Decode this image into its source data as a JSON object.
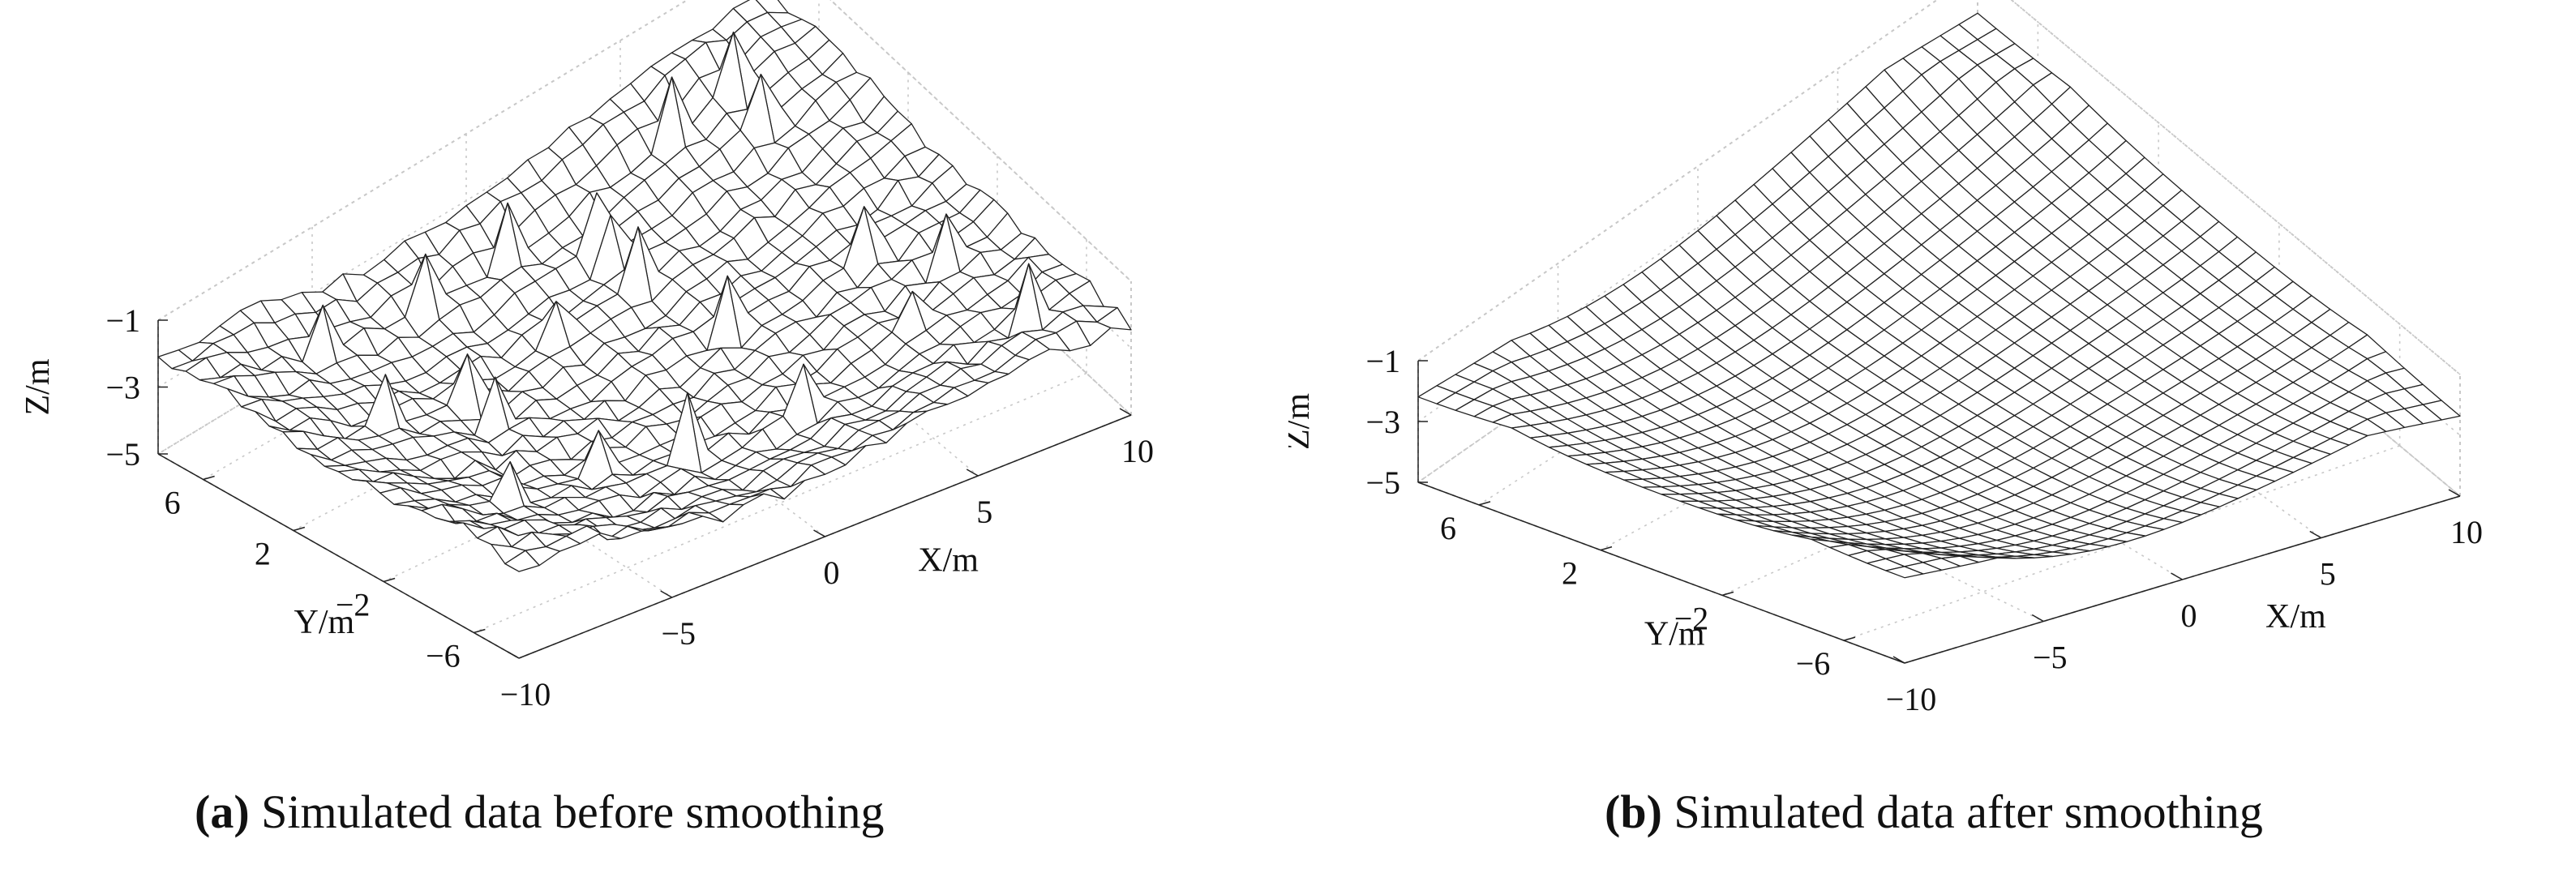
{
  "chart_data": [
    {
      "type": "surface",
      "caption_tag": "(a)",
      "caption_text": "Simulated data before smoothing",
      "xlabel": "X/m",
      "ylabel": "Y/m",
      "zlabel": "Z/m",
      "xlim": [
        -10,
        10
      ],
      "ylim": [
        -8,
        8
      ],
      "zlim": [
        -5,
        -1
      ],
      "xticks": [
        -10,
        -5,
        0,
        5,
        10
      ],
      "yticks": [
        -6,
        -2,
        2,
        6
      ],
      "zticks": [
        -5,
        -3,
        -1
      ],
      "xtick_labels": [
        "−10",
        "−5",
        "0",
        "5",
        "10"
      ],
      "ytick_labels": [
        "−6",
        "−2",
        "2",
        "6"
      ],
      "ztick_labels": [
        "−5",
        "−3",
        "−1"
      ],
      "grid": true,
      "surface": "basin with noise and spikes",
      "mesh_color": "#222222",
      "face_color": "#ffffff"
    },
    {
      "type": "surface",
      "caption_tag": "(b)",
      "caption_text": "Simulated data after smoothing",
      "xlabel": "X/m",
      "ylabel": "Y/m",
      "zlabel": "Z/m",
      "xlim": [
        -10,
        10
      ],
      "ylim": [
        -8,
        8
      ],
      "zlim": [
        -5,
        -1
      ],
      "xticks": [
        -10,
        -5,
        0,
        5,
        10
      ],
      "yticks": [
        -6,
        -2,
        2,
        6
      ],
      "zticks": [
        -5,
        -3,
        -1
      ],
      "xtick_labels": [
        "−10",
        "−5",
        "0",
        "5",
        "10"
      ],
      "ytick_labels": [
        "−6",
        "−2",
        "2",
        "6"
      ],
      "ztick_labels": [
        "−5",
        "−3",
        "−1"
      ],
      "grid": true,
      "surface": "smooth basin",
      "mesh_color": "#222222",
      "face_color": "#ffffff"
    }
  ]
}
